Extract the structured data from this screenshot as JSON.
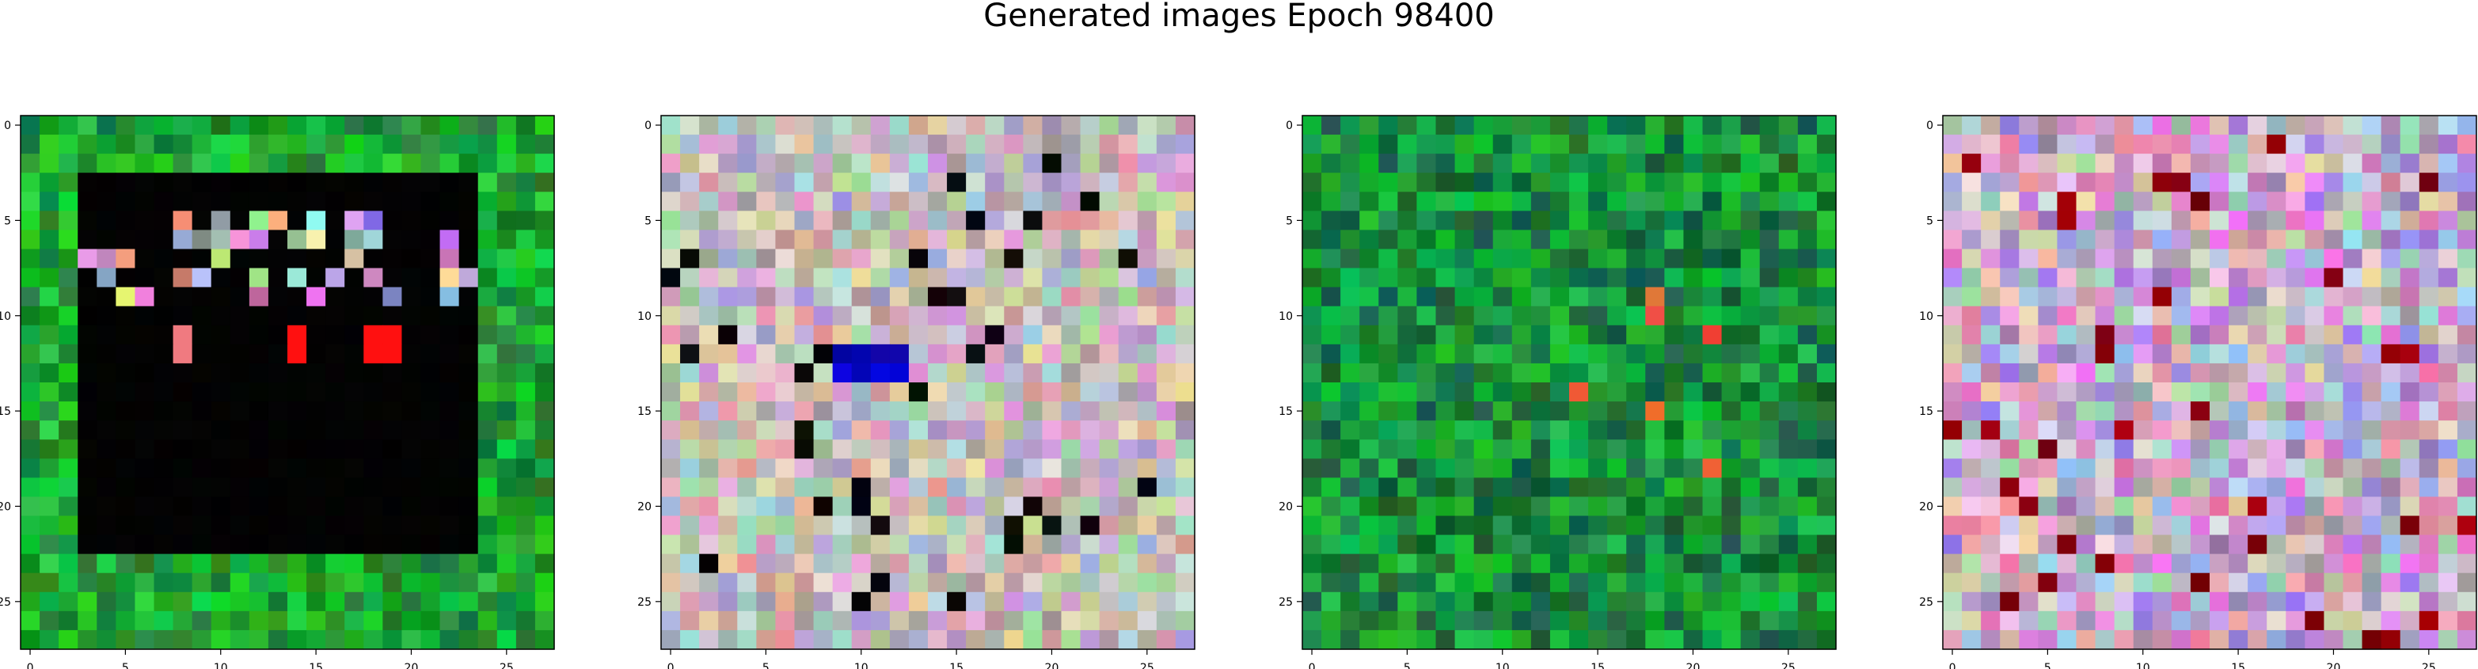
{
  "figure": {
    "title": "Generated images Epoch 98400"
  },
  "chart_data": [
    {
      "type": "heatmap",
      "title": "",
      "xlabel": "",
      "ylabel": "",
      "xlim": [
        -0.5,
        27.5
      ],
      "ylim": [
        27.5,
        -0.5
      ],
      "grid_size": [
        28,
        28
      ],
      "xticks": [
        "0",
        "5",
        "10",
        "15",
        "20",
        "25"
      ],
      "yticks": [
        "0",
        "5",
        "10",
        "15",
        "20",
        "25"
      ],
      "grid": false,
      "description_palette": [
        "#0a7a1e",
        "#1a9a35",
        "#35c25a",
        "#000000",
        "#ff1a10",
        "#ffffff"
      ],
      "dominant_color": "#1a9a35"
    },
    {
      "type": "heatmap",
      "title": "",
      "xlabel": "",
      "ylabel": "",
      "xlim": [
        -0.5,
        27.5
      ],
      "ylim": [
        27.5,
        -0.5
      ],
      "grid_size": [
        28,
        28
      ],
      "xticks": [
        "0",
        "5",
        "10",
        "15",
        "20",
        "25"
      ],
      "yticks": [
        "0",
        "5",
        "10",
        "15",
        "20",
        "25"
      ],
      "grid": false,
      "description_palette": [
        "#c8a4c8",
        "#a8b890",
        "#e0c8d8",
        "#9aa8c8",
        "#d890c0",
        "#1a10c0",
        "#101010"
      ],
      "dominant_color": "#c8a8c0"
    },
    {
      "type": "heatmap",
      "title": "",
      "xlabel": "",
      "ylabel": "",
      "xlim": [
        -0.5,
        27.5
      ],
      "ylim": [
        27.5,
        -0.5
      ],
      "grid_size": [
        28,
        28
      ],
      "xticks": [
        "0",
        "5",
        "10",
        "15",
        "20",
        "25"
      ],
      "yticks": [
        "0",
        "5",
        "10",
        "15",
        "20",
        "25"
      ],
      "grid": false,
      "description_palette": [
        "#0a6a28",
        "#128a38",
        "#20a848",
        "#35c060",
        "#ff4a2a",
        "#f07850"
      ],
      "dominant_color": "#128a38"
    },
    {
      "type": "heatmap",
      "title": "",
      "xlabel": "",
      "ylabel": "",
      "xlim": [
        -0.5,
        27.5
      ],
      "ylim": [
        27.5,
        -0.5
      ],
      "grid_size": [
        28,
        28
      ],
      "xticks": [
        "0",
        "5",
        "10",
        "15",
        "20",
        "25"
      ],
      "yticks": [
        "0",
        "5",
        "10",
        "15",
        "20",
        "25"
      ],
      "grid": false,
      "description_palette": [
        "#d0a8c8",
        "#c070c0",
        "#e8d8e0",
        "#a8a8c8",
        "#b89870",
        "#8a0020",
        "#101010"
      ],
      "dominant_color": "#c8a0c8"
    }
  ]
}
